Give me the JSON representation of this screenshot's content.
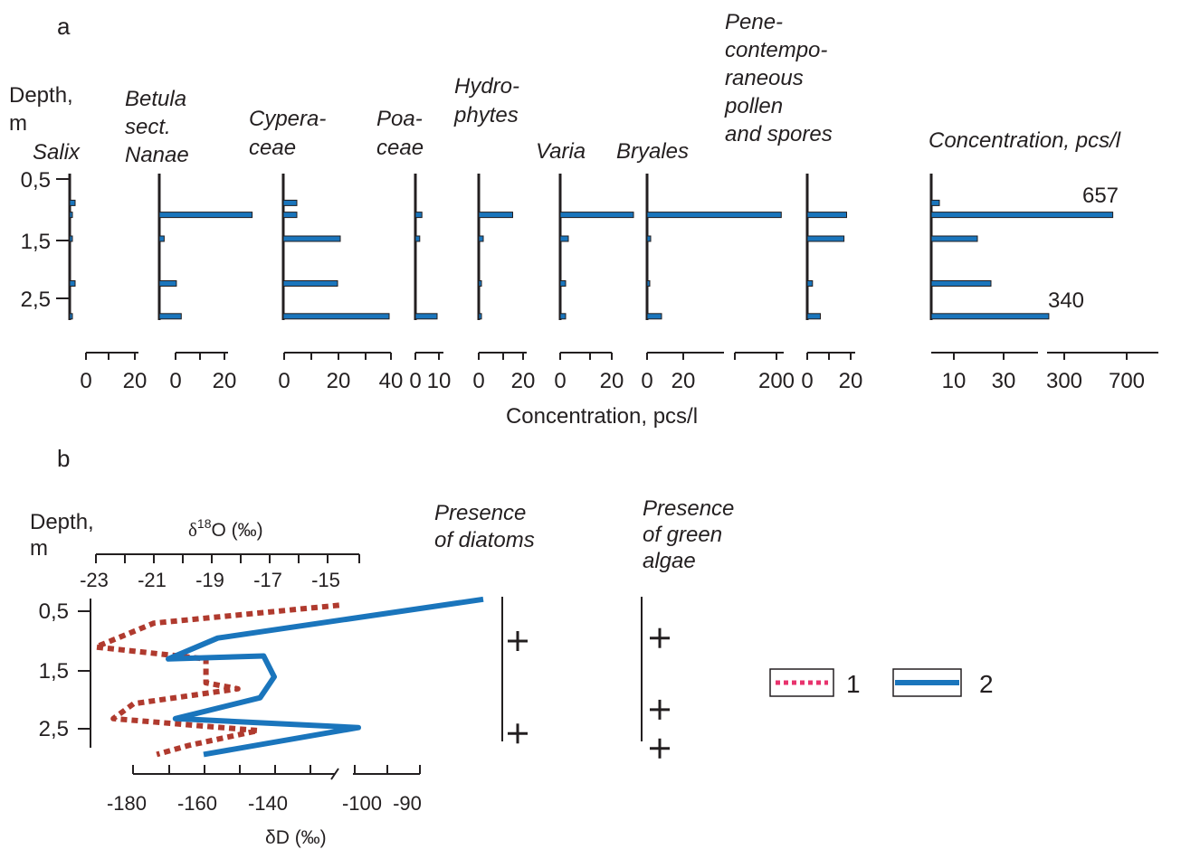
{
  "panel_a": {
    "label": "a",
    "depth_label": [
      "Depth,",
      "m"
    ],
    "depth_ticks": [
      "0,5",
      "1,5",
      "2,5"
    ],
    "right_title": "Concentration, pcs/l",
    "bottom_label": "Concentration, pcs/l",
    "annotations": [
      "657",
      "340"
    ]
  },
  "panel_b": {
    "label": "b",
    "depth_label": [
      "Depth,",
      "m"
    ],
    "depth_ticks": [
      "0,5",
      "1,5",
      "2,5"
    ],
    "d18o_label": {
      "delta": "δ",
      "sup": "18",
      "rest": "O (‰)"
    },
    "dd_label": "δD (‰)",
    "d18o_ticks": [
      "-23",
      "-21",
      "-19",
      "-17",
      "-15"
    ],
    "dd_ticks": [
      "-180",
      "-160",
      "-140",
      "-100",
      "-90"
    ],
    "diatoms_title": [
      "Presence",
      "of diatoms"
    ],
    "algae_title": [
      "Presence",
      "of green",
      "algae"
    ],
    "legend": [
      {
        "key": "1",
        "style": "dotted",
        "color": "#e8336d"
      },
      {
        "key": "2",
        "style": "solid",
        "color": "#1a75bc"
      }
    ]
  },
  "chart_data": [
    {
      "type": "bar",
      "orientation": "horizontal",
      "title": "",
      "x_axis_title": "Concentration, pcs/l",
      "y_axis_title": "Depth, m",
      "y_ticks": [
        "0,5",
        "1,5",
        "2,5"
      ],
      "y_inverted": true,
      "depths_m": [
        0.9,
        1.1,
        1.5,
        2.25,
        2.8
      ],
      "bar_color": "#1a75bc",
      "series": [
        {
          "name_lines": [
            "Salix"
          ],
          "ticks": [
            "0",
            "20"
          ],
          "values": [
            5,
            2,
            2,
            5,
            2
          ]
        },
        {
          "name_lines": [
            "Betula",
            "sect.",
            "Nanae"
          ],
          "ticks": [
            "0",
            "20"
          ],
          "values": [
            0,
            38,
            2,
            7,
            9
          ]
        },
        {
          "name_lines": [
            "Cypera-",
            "ceae"
          ],
          "ticks": [
            "0",
            "20",
            "40"
          ],
          "values": [
            5,
            5,
            21,
            20,
            39
          ]
        },
        {
          "name_lines": [
            "Poa-",
            "ceae"
          ],
          "ticks": [
            "0",
            "10"
          ],
          "values": [
            0,
            3,
            2,
            0,
            10
          ]
        },
        {
          "name_lines": [
            "Hydro-",
            "phytes"
          ],
          "ticks": [
            "0",
            "20"
          ],
          "values": [
            0,
            15,
            2,
            1,
            1
          ]
        },
        {
          "name_lines": [
            "Varia"
          ],
          "ticks": [
            "0",
            "20"
          ],
          "values": [
            0,
            27,
            3,
            2,
            2
          ]
        },
        {
          "name_lines": [
            "Bryales"
          ],
          "ticks": [
            "0",
            "20",
            "200"
          ],
          "values": [
            0,
            210,
            2,
            1,
            8
          ]
        },
        {
          "name_lines": [
            "Pene-",
            "contempo-",
            "raneous",
            "pollen",
            "and spores"
          ],
          "ticks": [
            "0",
            "20"
          ],
          "values": [
            0,
            15,
            14,
            2,
            5
          ]
        },
        {
          "name_lines": [
            "Concentration, pcs/l"
          ],
          "ticks": [
            "10",
            "30",
            "300",
            "700"
          ],
          "values": [
            3,
            657,
            17,
            22,
            340
          ],
          "labels": [
            "",
            "657",
            "",
            "",
            "340"
          ]
        }
      ]
    },
    {
      "type": "line",
      "orientation": "vertical-profile",
      "y_axis_title": "Depth, m",
      "y_ticks": [
        "0,5",
        "1,5",
        "2,5"
      ],
      "y_inverted": true,
      "series": [
        {
          "name": "1",
          "axis": "δ18O (‰)",
          "style": "dotted",
          "color": "#b03a2e",
          "points": [
            [
              -14.6,
              0.4
            ],
            [
              -21.0,
              0.7
            ],
            [
              -23.0,
              1.1
            ],
            [
              -19.2,
              1.3
            ],
            [
              -19.2,
              1.7
            ],
            [
              -18.1,
              1.8
            ],
            [
              -21.7,
              2.05
            ],
            [
              -22.4,
              2.3
            ],
            [
              -17.4,
              2.5
            ],
            [
              -19.8,
              2.75
            ],
            [
              -20.9,
              2.9
            ]
          ]
        },
        {
          "name": "2",
          "axis": "δD (‰)",
          "style": "solid",
          "color": "#1a75bc",
          "points": [
            [
              -90,
              0.3
            ],
            [
              -156,
              0.95
            ],
            [
              -170,
              1.3
            ],
            [
              -143,
              1.25
            ],
            [
              -140,
              1.6
            ],
            [
              -144,
              1.95
            ],
            [
              -168,
              2.3
            ],
            [
              -120,
              2.45
            ],
            [
              -160,
              2.9
            ]
          ]
        }
      ]
    },
    {
      "type": "scatter",
      "title_lines": [
        "Presence",
        "of diatoms"
      ],
      "marker": "+",
      "depths_m": [
        1.0,
        2.55
      ]
    },
    {
      "type": "scatter",
      "title_lines": [
        "Presence",
        "of green",
        "algae"
      ],
      "marker": "+",
      "depths_m": [
        0.95,
        2.15,
        2.8
      ]
    }
  ]
}
